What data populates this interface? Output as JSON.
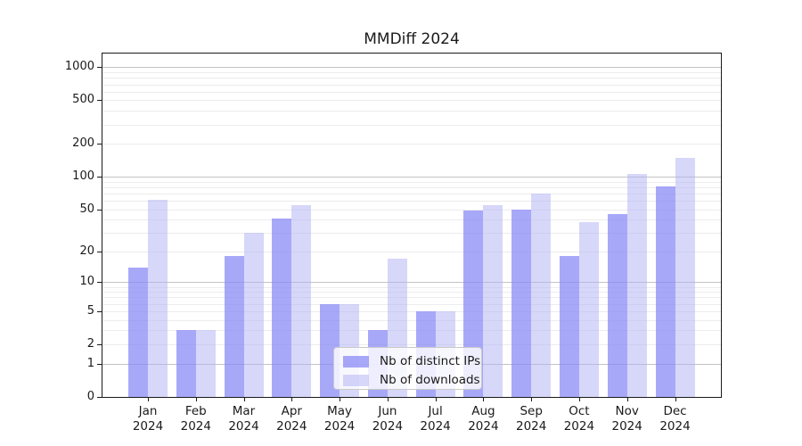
{
  "chart_data": {
    "type": "bar",
    "title": "MMDiff 2024",
    "categories": [
      "Jan",
      "Feb",
      "Mar",
      "Apr",
      "May",
      "Jun",
      "Jul",
      "Aug",
      "Sep",
      "Oct",
      "Nov",
      "Dec"
    ],
    "category_year": "2024",
    "series": [
      {
        "name": "Nb of distinct IPs",
        "color": "#8888f7",
        "alpha": 0.73,
        "values": [
          14,
          3,
          18,
          41,
          6,
          3,
          5,
          49,
          50,
          18,
          45,
          81
        ]
      },
      {
        "name": "Nb of downloads",
        "color": "#b2b2f6",
        "alpha": 0.52,
        "values": [
          61,
          3,
          30,
          54,
          6,
          17,
          5,
          55,
          70,
          38,
          106,
          150
        ]
      }
    ],
    "xlabel": "",
    "ylabel": "",
    "y_ticks": [
      0,
      1,
      2,
      5,
      10,
      20,
      50,
      100,
      200,
      500,
      1000
    ],
    "yscale": "symlog: y = log10(value + 1)",
    "ylim": [
      0,
      1400
    ],
    "grid": true,
    "grid_minor_values": [
      2,
      3,
      4,
      5,
      6,
      7,
      8,
      9,
      20,
      30,
      40,
      50,
      60,
      70,
      80,
      90,
      200,
      300,
      400,
      500,
      600,
      700,
      800,
      900
    ],
    "grid_major_values": [
      1,
      10,
      100,
      1000
    ],
    "legend_position": "lower center",
    "colors": {
      "axis": "#1a1a1a",
      "grid_minor": "#ececec",
      "grid_major": "#c3c3c3",
      "legend_border": "#c9c9c9"
    }
  }
}
